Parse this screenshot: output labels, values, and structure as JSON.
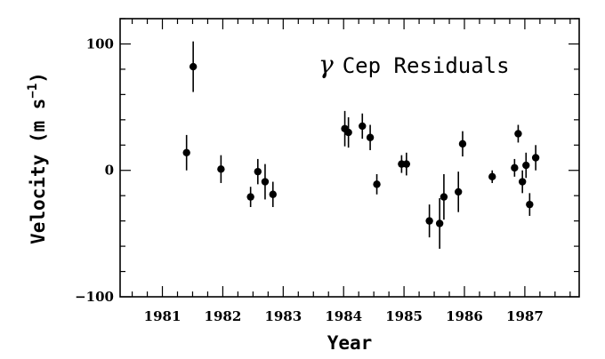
{
  "chart_data": {
    "type": "scatter",
    "title": "",
    "annotation_symbol": "γ",
    "annotation_text": "Cep Residuals",
    "xlabel": "Year",
    "ylabel": "Velocity (m s",
    "ylabel_exponent": "−1",
    "ylabel_close": ")",
    "xlim": [
      1980.3,
      1987.9
    ],
    "ylim": [
      -100,
      120
    ],
    "x_major_ticks": [
      1981,
      1982,
      1983,
      1984,
      1985,
      1986,
      1987
    ],
    "x_tick_labels": [
      "1981",
      "1982",
      "1983",
      "1984",
      "1985",
      "1986",
      "1987"
    ],
    "y_major_ticks": [
      -100,
      0,
      100
    ],
    "y_tick_labels": [
      "−100",
      "0",
      "100"
    ],
    "grid": false,
    "series": [
      {
        "points": [
          {
            "x": 1981.4,
            "y": 14,
            "err": 14
          },
          {
            "x": 1981.51,
            "y": 82,
            "err": 20
          },
          {
            "x": 1981.97,
            "y": 1,
            "err": 11
          },
          {
            "x": 1982.46,
            "y": -21,
            "err": 8
          },
          {
            "x": 1982.58,
            "y": -1,
            "err": 10
          },
          {
            "x": 1982.7,
            "y": -9,
            "err": 14
          },
          {
            "x": 1982.83,
            "y": -19,
            "err": 10
          },
          {
            "x": 1984.02,
            "y": 33,
            "err": 14
          },
          {
            "x": 1984.08,
            "y": 30,
            "err": 12
          },
          {
            "x": 1984.31,
            "y": 35,
            "err": 10
          },
          {
            "x": 1984.44,
            "y": 26,
            "err": 10
          },
          {
            "x": 1984.55,
            "y": -11,
            "err": 8
          },
          {
            "x": 1984.96,
            "y": 5,
            "err": 7
          },
          {
            "x": 1985.04,
            "y": 5,
            "err": 9
          },
          {
            "x": 1985.42,
            "y": -40,
            "err": 13
          },
          {
            "x": 1985.59,
            "y": -42,
            "err": 20
          },
          {
            "x": 1985.66,
            "y": -21,
            "err": 18
          },
          {
            "x": 1985.9,
            "y": -17,
            "err": 16
          },
          {
            "x": 1985.97,
            "y": 21,
            "err": 10
          },
          {
            "x": 1986.46,
            "y": -5,
            "err": 5
          },
          {
            "x": 1986.83,
            "y": 2,
            "err": 7
          },
          {
            "x": 1986.89,
            "y": 29,
            "err": 7
          },
          {
            "x": 1986.96,
            "y": -9,
            "err": 9
          },
          {
            "x": 1987.02,
            "y": 4,
            "err": 10
          },
          {
            "x": 1987.08,
            "y": -27,
            "err": 9
          },
          {
            "x": 1987.18,
            "y": 10,
            "err": 10
          }
        ]
      }
    ]
  }
}
